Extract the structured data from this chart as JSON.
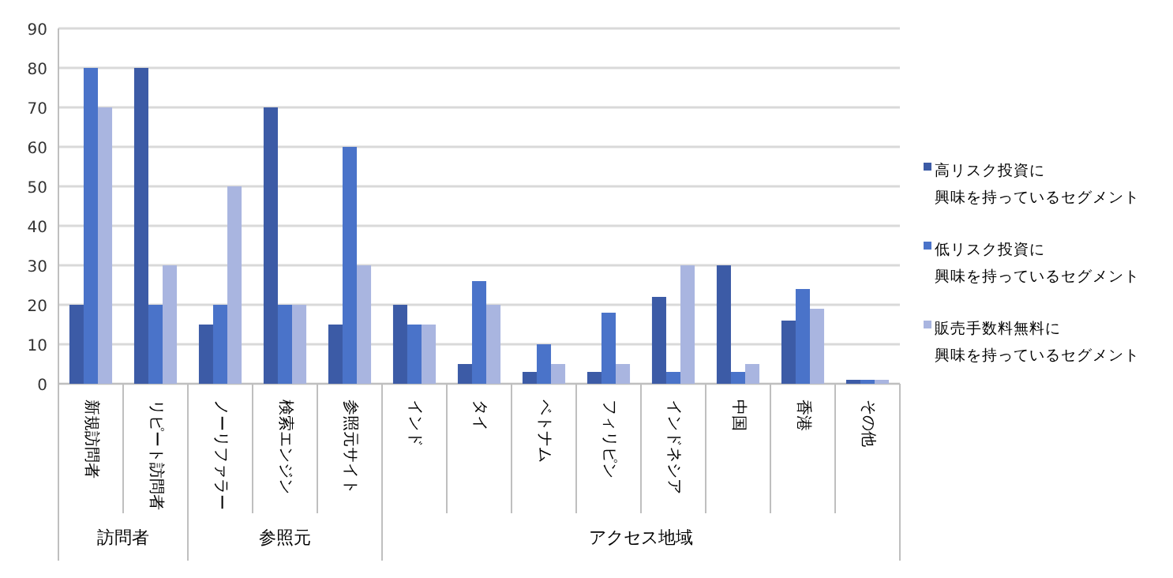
{
  "chart_data": {
    "type": "bar",
    "categories": [
      "新規訪問者",
      "リピート訪問者",
      "ノーリファラー",
      "検索エンジン",
      "参照元サイト",
      "インド",
      "タイ",
      "ベトナム",
      "フィリピン",
      "インドネシア",
      "中国",
      "香港",
      "その他"
    ],
    "series": [
      {
        "name": "高リスク投資に興味を持っているセグメント",
        "color": "#3c5ba6",
        "values": [
          20,
          80,
          15,
          70,
          15,
          20,
          5,
          3,
          3,
          22,
          30,
          16,
          1
        ]
      },
      {
        "name": "低リスク投資に興味を持っているセグメント",
        "color": "#4a73c9",
        "values": [
          80,
          20,
          20,
          20,
          60,
          15,
          26,
          10,
          18,
          3,
          3,
          24,
          1
        ]
      },
      {
        "name": "販売手数料無料に興味を持っているセグメント",
        "color": "#a9b5e0",
        "values": [
          70,
          30,
          50,
          20,
          30,
          15,
          20,
          5,
          5,
          30,
          5,
          19,
          1
        ]
      }
    ],
    "annotations": [
      "訪問者",
      "参照元",
      "アクセス地域"
    ],
    "ylim": [
      0,
      90
    ],
    "yticks": [
      0,
      10,
      20,
      30,
      40,
      50,
      60,
      70,
      80,
      90
    ],
    "grid": "y",
    "legend": "right"
  }
}
